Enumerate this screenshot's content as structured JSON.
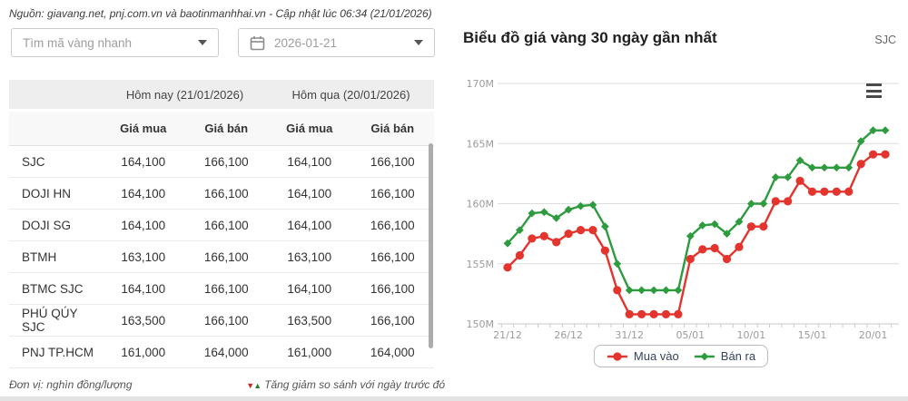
{
  "header": {
    "source_note": "Nguồn: giavang.net, pnj.com.vn và baotinmanhhai.vn - Cập nhật lúc 06:34 (21/01/2026)"
  },
  "filters": {
    "code_select": {
      "placeholder": "Tìm mã vàng nhanh"
    },
    "date_picker": {
      "value": "2026-01-21"
    }
  },
  "price_table": {
    "col_groups": [
      {
        "label": "Hôm nay (21/01/2026)"
      },
      {
        "label": "Hôm qua (20/01/2026)"
      }
    ],
    "sub_headers": [
      "Giá mua",
      "Giá bán",
      "Giá mua",
      "Giá bán"
    ],
    "rows": [
      {
        "name": "SJC",
        "values": [
          "164,100",
          "166,100",
          "164,100",
          "166,100"
        ]
      },
      {
        "name": "DOJI HN",
        "values": [
          "164,100",
          "166,100",
          "164,100",
          "166,100"
        ]
      },
      {
        "name": "DOJI SG",
        "values": [
          "164,100",
          "166,100",
          "164,100",
          "166,100"
        ]
      },
      {
        "name": "BTMH",
        "values": [
          "163,100",
          "166,100",
          "163,100",
          "166,100"
        ]
      },
      {
        "name": "BTMC SJC",
        "values": [
          "164,100",
          "166,100",
          "164,100",
          "166,100"
        ]
      },
      {
        "name": "PHÚ QÚY SJC",
        "values": [
          "163,500",
          "166,100",
          "163,500",
          "166,100"
        ]
      },
      {
        "name": "PNJ TP.HCM",
        "values": [
          "161,000",
          "164,000",
          "161,000",
          "164,000"
        ]
      }
    ]
  },
  "footer": {
    "unit_note": "Đơn vị: nghìn đồng/lượng",
    "change_note": "Tăng giảm so sánh với ngày trước đó",
    "down_color": "#c62828",
    "up_color": "#2e7d32"
  },
  "chart_panel": {
    "title": "Biểu đồ giá vàng 30 ngày gần nhất",
    "badge": "SJC"
  },
  "chart_data": {
    "type": "line",
    "title": "Biểu đồ giá vàng 30 ngày gần nhất",
    "x": [
      "21/12",
      "22/12",
      "23/12",
      "24/12",
      "25/12",
      "26/12",
      "27/12",
      "28/12",
      "29/12",
      "30/12",
      "31/12",
      "01/01",
      "02/01",
      "03/01",
      "04/01",
      "05/01",
      "06/01",
      "07/01",
      "08/01",
      "09/01",
      "10/01",
      "11/01",
      "12/01",
      "13/01",
      "14/01",
      "15/01",
      "16/01",
      "17/01",
      "18/01",
      "19/01",
      "20/01",
      "21/01"
    ],
    "series": [
      {
        "name": "Mua vào",
        "color": "#e3342e",
        "marker": "circle",
        "values": [
          154.7,
          155.7,
          157.1,
          157.3,
          156.8,
          157.5,
          157.8,
          157.8,
          156.1,
          152.8,
          150.8,
          150.8,
          150.8,
          150.8,
          150.8,
          155.4,
          156.2,
          156.3,
          155.4,
          156.4,
          158.1,
          158.1,
          160.2,
          160.2,
          161.9,
          161.0,
          161.0,
          161.0,
          161.0,
          163.3,
          164.1,
          164.1
        ]
      },
      {
        "name": "Bán ra",
        "color": "#2e9b3f",
        "marker": "diamond",
        "values": [
          156.7,
          157.8,
          159.2,
          159.3,
          158.8,
          159.5,
          159.8,
          159.9,
          158.1,
          155.0,
          152.8,
          152.8,
          152.8,
          152.8,
          152.8,
          157.3,
          158.2,
          158.3,
          157.5,
          158.5,
          160.0,
          160.0,
          162.2,
          162.2,
          163.6,
          163.0,
          163.0,
          163.0,
          163.0,
          165.2,
          166.1,
          166.1
        ]
      }
    ],
    "ylim": [
      150,
      170
    ],
    "yticks": {
      "values": [
        150,
        155,
        160,
        165,
        170
      ],
      "labels": [
        "150M",
        "155M",
        "160M",
        "165M",
        "170M"
      ]
    },
    "xticks": [
      {
        "index": 0,
        "label": "21/12"
      },
      {
        "index": 5,
        "label": "26/12"
      },
      {
        "index": 10,
        "label": "31/12"
      },
      {
        "index": 15,
        "label": "05/01"
      },
      {
        "index": 20,
        "label": "10/01"
      },
      {
        "index": 25,
        "label": "15/01"
      },
      {
        "index": 30,
        "label": "20/01"
      }
    ],
    "grid": true,
    "legend_position": "bottom"
  }
}
